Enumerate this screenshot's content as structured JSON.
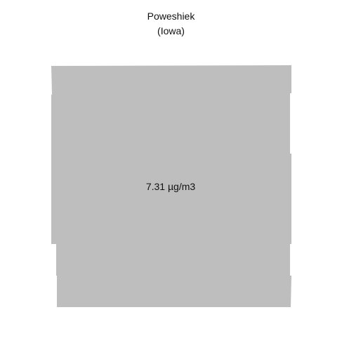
{
  "title": {
    "name": "Poweshiek",
    "state": "(Iowa)"
  },
  "county": {
    "name": "Poweshiek",
    "value_label": "7.31 µg/m3",
    "value": 7.31,
    "unit": "µg/m3",
    "fill_color": "#bebebe"
  }
}
